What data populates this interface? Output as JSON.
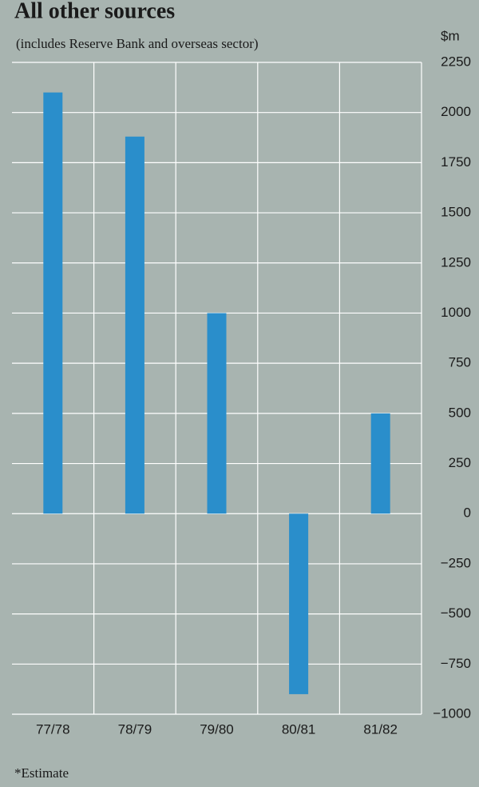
{
  "chart_data": {
    "type": "bar",
    "title": "All other sources",
    "subtitle": "(includes Reserve Bank and overseas sector)",
    "y_unit": "$m",
    "categories": [
      "77/78",
      "78/79",
      "79/80",
      "80/81",
      "81/82"
    ],
    "values": [
      2100,
      1880,
      1000,
      -900,
      500
    ],
    "color": "#2a8ecb",
    "ylim": [
      -1000,
      2250
    ],
    "yticks": [
      {
        "value": -1000,
        "label": "−1000"
      },
      {
        "value": -750,
        "label": "−750"
      },
      {
        "value": -500,
        "label": "−500"
      },
      {
        "value": -250,
        "label": "−250"
      },
      0,
      250,
      500,
      750,
      1000,
      1250,
      1500,
      1750,
      2000,
      2250
    ],
    "grid": true,
    "footnote": "*Estimate"
  }
}
